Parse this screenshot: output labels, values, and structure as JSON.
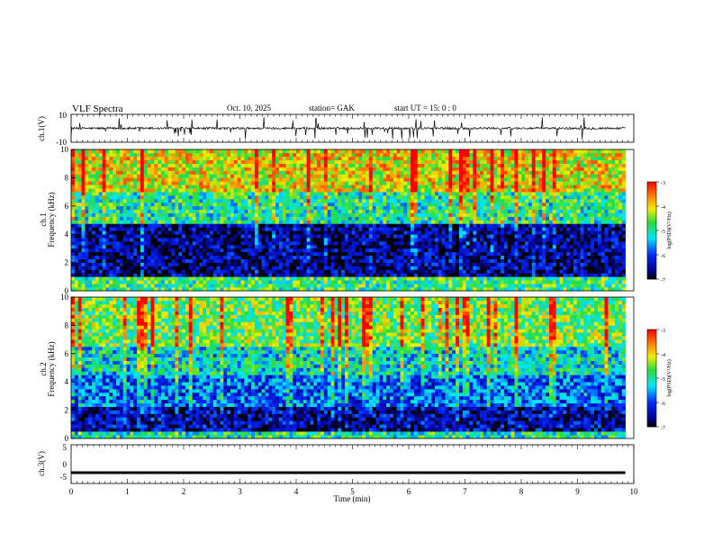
{
  "header": {
    "title": "VLF  Spectra",
    "date": "Oct. 10, 2025",
    "station": "station= GAK",
    "start": "start  UT =    15: 0   : 0"
  },
  "chart_data": [
    {
      "type": "line",
      "panel": "ch1-waveform",
      "ylabel": "ch.1(V)",
      "ylim": [
        -10,
        10
      ],
      "yticks": [
        "10",
        "-10"
      ],
      "xlim": [
        0,
        10
      ],
      "description_of_values": "noisy waveform around 0 V with sporadic spikes reaching about ±5 V, data ends near 9.85 min"
    },
    {
      "type": "heatmap",
      "panel": "ch1-spectrogram",
      "ylabel": "Frequency (kHz)",
      "ylabel_prefix": "ch.1",
      "ylim": [
        0,
        10
      ],
      "yticks": [
        "0",
        "2",
        "4",
        "6",
        "8",
        "10"
      ],
      "xlim": [
        0,
        10
      ],
      "colorbar": {
        "label": "log(PSD)(V²/Hz)",
        "ticks": [
          "-3",
          "-4",
          "-5",
          "-6",
          "-7"
        ],
        "range": [
          -7,
          -3
        ]
      },
      "bands": [
        {
          "from_khz": 0,
          "to_khz": 1,
          "level": -4.8
        },
        {
          "from_khz": 1,
          "to_khz": 4.8,
          "level": -6.6
        },
        {
          "from_khz": 4.8,
          "to_khz": 7,
          "level": -5.0
        },
        {
          "from_khz": 7,
          "to_khz": 10,
          "level": -4.1
        }
      ]
    },
    {
      "type": "heatmap",
      "panel": "ch2-spectrogram",
      "ylabel": "Frequency (kHz)",
      "ylabel_prefix": "ch.2",
      "ylim": [
        0,
        10
      ],
      "yticks": [
        "0",
        "2",
        "4",
        "6",
        "8",
        "10"
      ],
      "xlim": [
        0,
        10
      ],
      "colorbar": {
        "label": "log(PSD)(V²/Hz)",
        "ticks": [
          "-3",
          "-4",
          "-5",
          "-6",
          "-7"
        ],
        "range": [
          -7,
          -3
        ]
      },
      "bands": [
        {
          "from_khz": 0,
          "to_khz": 0.5,
          "level": -5.0
        },
        {
          "from_khz": 0.5,
          "to_khz": 2.2,
          "level": -6.5
        },
        {
          "from_khz": 2.2,
          "to_khz": 4.5,
          "level": -5.8
        },
        {
          "from_khz": 4.5,
          "to_khz": 6.5,
          "level": -5.2
        },
        {
          "from_khz": 6.5,
          "to_khz": 10,
          "level": -4.6
        }
      ]
    },
    {
      "type": "line",
      "panel": "ch3-waveform",
      "ylabel": "ch.3(V)",
      "ylim": [
        -5,
        5
      ],
      "yticks": [
        "5",
        "0",
        "-5"
      ],
      "xlim": [
        0,
        10
      ],
      "constant_value": -2.2,
      "xlabel": "Time  (min)",
      "xticks": [
        "0",
        "1",
        "2",
        "3",
        "4",
        "5",
        "6",
        "7",
        "8",
        "9",
        "10"
      ]
    }
  ]
}
